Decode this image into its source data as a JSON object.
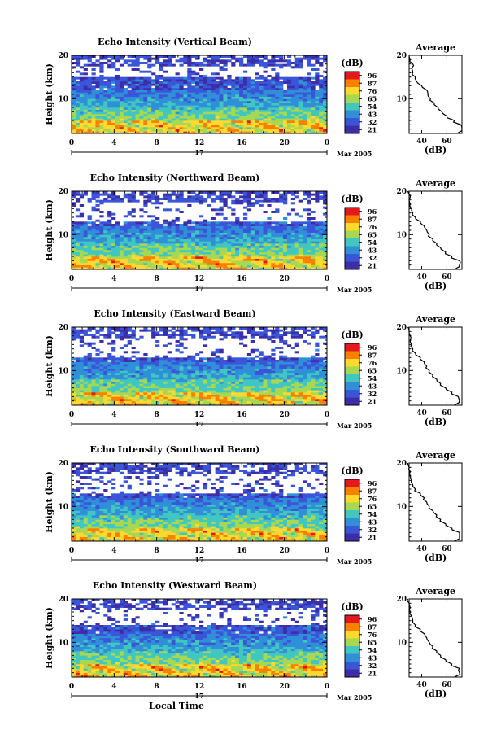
{
  "figure": {
    "local_time_label": "Local Time",
    "date_day": "17",
    "date_month": "Mar 2005",
    "colorbar_unit": "(dB)",
    "colorbar_ticks": [
      "96",
      "87",
      "76",
      "65",
      "54",
      "43",
      "32",
      "21"
    ],
    "colorbar_colors": [
      "#e31a1c",
      "#ff7f00",
      "#ffd92f",
      "#a6d854",
      "#41c6c0",
      "#2f8fd8",
      "#3b55d9",
      "#3a2fa8"
    ],
    "average_title": "Average",
    "average_xlabel": "(dB)",
    "main_ylabel": "Height (km)"
  },
  "chart_data": [
    {
      "type": "heatmap",
      "title": "Echo Intensity (Vertical Beam)",
      "ylabel": "Height (km)",
      "xlabel": "",
      "xlim": [
        0,
        24
      ],
      "ylim": [
        2,
        20
      ],
      "x_ticks": [
        "0",
        "4",
        "8",
        "12",
        "16",
        "20",
        "0"
      ],
      "y_ticks": [
        "10",
        "20"
      ],
      "value_unit": "dB",
      "value_range": [
        21,
        96
      ],
      "gap_band_km": [
        15,
        17.5
      ],
      "average_profile": {
        "x_ticks": [
          "40",
          "60"
        ],
        "y_ticks": [
          "10",
          "20"
        ],
        "height_km": [
          2,
          3,
          4,
          5,
          6,
          7,
          8,
          9,
          10,
          11,
          12,
          13,
          14,
          15,
          16,
          17,
          18,
          19,
          20
        ],
        "db": [
          68,
          72,
          71,
          66,
          60,
          56,
          53,
          50,
          47,
          45,
          44,
          40,
          36,
          35,
          33,
          32,
          33,
          31,
          30
        ]
      }
    },
    {
      "type": "heatmap",
      "title": "Echo Intensity (Northward Beam)",
      "ylabel": "Height (km)",
      "xlabel": "",
      "xlim": [
        0,
        24
      ],
      "ylim": [
        2,
        20
      ],
      "x_ticks": [
        "0",
        "4",
        "8",
        "12",
        "16",
        "20",
        "0"
      ],
      "y_ticks": [
        "10",
        "20"
      ],
      "value_unit": "dB",
      "value_range": [
        21,
        96
      ],
      "gap_band_km": [
        13,
        17.5
      ],
      "average_profile": {
        "x_ticks": [
          "40",
          "60"
        ],
        "y_ticks": [
          "10",
          "20"
        ],
        "height_km": [
          2,
          3,
          4,
          5,
          6,
          7,
          8,
          9,
          10,
          11,
          12,
          13,
          14,
          15,
          16,
          17,
          18,
          19,
          20
        ],
        "db": [
          66,
          70,
          70,
          64,
          59,
          55,
          52,
          49,
          46,
          44,
          42,
          39,
          35,
          33,
          32,
          31,
          30,
          31,
          29
        ]
      }
    },
    {
      "type": "heatmap",
      "title": "Echo Intensity (Eastward Beam)",
      "ylabel": "Height (km)",
      "xlabel": "",
      "xlim": [
        0,
        24
      ],
      "ylim": [
        2,
        20
      ],
      "x_ticks": [
        "0",
        "4",
        "8",
        "12",
        "16",
        "20",
        "0"
      ],
      "y_ticks": [
        "10",
        "20"
      ],
      "value_unit": "dB",
      "value_range": [
        21,
        96
      ],
      "gap_band_km": [
        13,
        17.5
      ],
      "average_profile": {
        "x_ticks": [
          "40",
          "60"
        ],
        "y_ticks": [
          "10",
          "20"
        ],
        "height_km": [
          2,
          3,
          4,
          5,
          6,
          7,
          8,
          9,
          10,
          11,
          12,
          13,
          14,
          15,
          16,
          17,
          18,
          19,
          20
        ],
        "db": [
          66,
          70,
          69,
          64,
          59,
          55,
          52,
          49,
          46,
          44,
          42,
          39,
          35,
          33,
          32,
          31,
          31,
          30,
          29
        ]
      }
    },
    {
      "type": "heatmap",
      "title": "Echo Intensity (Southward Beam)",
      "ylabel": "Height (km)",
      "xlabel": "",
      "xlim": [
        0,
        24
      ],
      "ylim": [
        2,
        20
      ],
      "x_ticks": [
        "0",
        "4",
        "8",
        "12",
        "16",
        "20",
        "0"
      ],
      "y_ticks": [
        "10",
        "20"
      ],
      "value_unit": "dB",
      "value_range": [
        21,
        96
      ],
      "gap_band_km": [
        13,
        17.5
      ],
      "average_profile": {
        "x_ticks": [
          "40",
          "60"
        ],
        "y_ticks": [
          "10",
          "20"
        ],
        "height_km": [
          2,
          3,
          4,
          5,
          6,
          7,
          8,
          9,
          10,
          11,
          12,
          13,
          14,
          15,
          16,
          17,
          18,
          19,
          20
        ],
        "db": [
          66,
          70,
          70,
          64,
          59,
          55,
          52,
          49,
          46,
          44,
          42,
          39,
          35,
          33,
          32,
          31,
          31,
          30,
          29
        ]
      }
    },
    {
      "type": "heatmap",
      "title": "Echo Intensity (Westward Beam)",
      "ylabel": "Height (km)",
      "xlabel": "Local Time",
      "xlim": [
        0,
        24
      ],
      "ylim": [
        2,
        20
      ],
      "x_ticks": [
        "0",
        "4",
        "8",
        "12",
        "16",
        "20",
        "0"
      ],
      "y_ticks": [
        "10",
        "20"
      ],
      "value_unit": "dB",
      "value_range": [
        21,
        96
      ],
      "gap_band_km": [
        14,
        17.5
      ],
      "average_profile": {
        "x_ticks": [
          "40",
          "60"
        ],
        "y_ticks": [
          "10",
          "20"
        ],
        "height_km": [
          2,
          3,
          4,
          5,
          6,
          7,
          8,
          9,
          10,
          11,
          12,
          13,
          14,
          15,
          16,
          17,
          18,
          19,
          20
        ],
        "db": [
          66,
          70,
          70,
          64,
          59,
          55,
          52,
          49,
          46,
          44,
          42,
          39,
          35,
          33,
          32,
          31,
          31,
          30,
          29
        ]
      }
    }
  ]
}
